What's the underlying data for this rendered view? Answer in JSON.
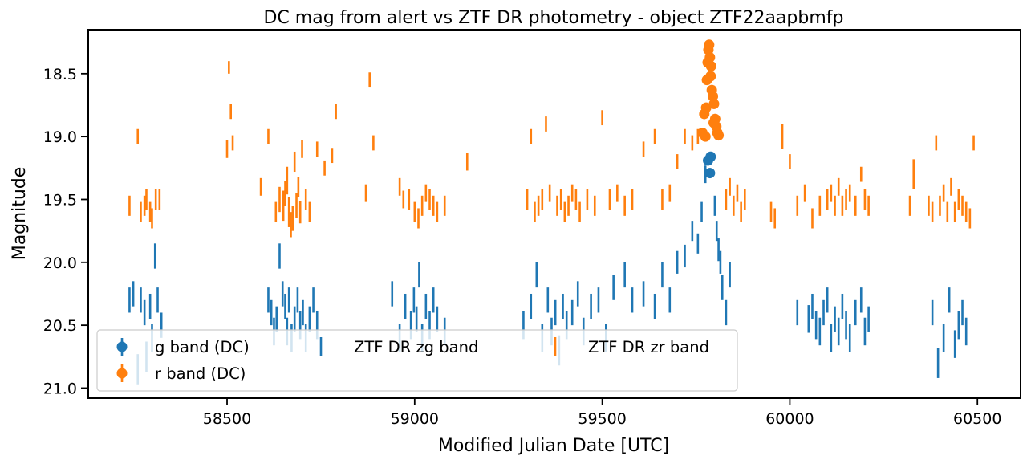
{
  "chart_data": {
    "type": "scatter",
    "title": "DC mag from alert vs ZTF DR photometry - object ZTF22aapbmfp",
    "xlabel": "Modified Julian Date [UTC]",
    "ylabel": "Magnitude",
    "xlim": [
      58130,
      60615
    ],
    "ylim": [
      21.08,
      18.15
    ],
    "y_inverted": true,
    "grid": false,
    "legend_position": "lower-left",
    "legend_columns": 3,
    "x_ticks": [
      58500,
      59000,
      59500,
      60000,
      60500
    ],
    "x_tick_labels": [
      "58500",
      "59000",
      "59500",
      "60000",
      "60500"
    ],
    "y_ticks": [
      18.5,
      19.0,
      19.5,
      20.0,
      20.5,
      21.0
    ],
    "y_tick_labels": [
      "18.5",
      "19.0",
      "19.5",
      "20.0",
      "20.5",
      "21.0"
    ],
    "colors": {
      "g": "#1f77b4",
      "r": "#ff7f0e"
    },
    "series": [
      {
        "name": "g band (DC)",
        "marker": "circle",
        "color": "#1f77b4",
        "x": [
          59782,
          59789,
          59787
        ],
        "y": [
          19.19,
          19.16,
          19.29
        ],
        "err": [
          0.04,
          0.04,
          0.04
        ]
      },
      {
        "name": "r band (DC)",
        "marker": "circle",
        "color": "#ff7f0e",
        "x": [
          59767,
          59772,
          59777,
          59779,
          59781,
          59783,
          59785,
          59787,
          59789,
          59792,
          59795,
          59798,
          59801,
          59804,
          59807,
          59810,
          59775,
          59790,
          59797
        ],
        "y": [
          18.97,
          18.82,
          18.77,
          18.55,
          18.41,
          18.31,
          18.27,
          18.37,
          18.52,
          18.63,
          18.68,
          18.74,
          18.86,
          18.92,
          18.97,
          18.99,
          19.0,
          18.44,
          18.89
        ],
        "err": [
          0.04,
          0.04,
          0.04,
          0.04,
          0.04,
          0.04,
          0.04,
          0.04,
          0.04,
          0.04,
          0.04,
          0.04,
          0.04,
          0.04,
          0.04,
          0.04,
          0.04,
          0.04,
          0.04
        ]
      },
      {
        "name": "ZTF DR zg band",
        "marker": "errorbar",
        "color": "#1f77b4",
        "x": [
          58240,
          58250,
          58262,
          58270,
          58280,
          58285,
          58295,
          58300,
          58308,
          58315,
          58325,
          58610,
          58618,
          58625,
          58632,
          58640,
          58648,
          58655,
          58660,
          58665,
          58672,
          58680,
          58688,
          58695,
          58702,
          58710,
          58720,
          58730,
          58740,
          58940,
          58960,
          58975,
          58990,
          58998,
          59005,
          59012,
          59020,
          59030,
          59040,
          59050,
          59060,
          59080,
          59290,
          59310,
          59325,
          59340,
          59355,
          59365,
          59375,
          59385,
          59395,
          59405,
          59420,
          59435,
          59450,
          59470,
          59490,
          59510,
          59530,
          59560,
          59580,
          59610,
          59640,
          59660,
          59680,
          59700,
          59720,
          59740,
          59755,
          59765,
          59775,
          59800,
          59805,
          59810,
          59815,
          59820,
          59830,
          59840,
          60020,
          60050,
          60060,
          60070,
          60080,
          60090,
          60100,
          60110,
          60120,
          60130,
          60140,
          60150,
          60160,
          60175,
          60190,
          60200,
          60210,
          60380,
          60395,
          60410,
          60425,
          60440,
          60450,
          60460,
          60470
        ],
        "y": [
          20.3,
          20.25,
          20.85,
          20.3,
          20.4,
          20.75,
          20.35,
          20.6,
          19.95,
          20.3,
          20.5,
          20.3,
          20.4,
          20.55,
          20.45,
          19.95,
          20.25,
          20.35,
          20.55,
          20.3,
          20.6,
          20.45,
          20.3,
          20.5,
          20.4,
          20.6,
          20.45,
          20.3,
          20.5,
          20.25,
          20.6,
          20.35,
          20.5,
          20.3,
          20.45,
          20.1,
          20.6,
          20.35,
          20.5,
          20.3,
          20.45,
          20.55,
          20.5,
          20.35,
          20.1,
          20.6,
          20.3,
          20.55,
          20.4,
          20.7,
          20.35,
          20.5,
          20.4,
          20.25,
          20.55,
          20.35,
          20.3,
          20.6,
          20.2,
          20.1,
          20.3,
          20.25,
          20.35,
          20.1,
          20.3,
          20.0,
          19.95,
          19.75,
          19.85,
          19.6,
          19.3,
          19.55,
          19.75,
          19.9,
          20.0,
          20.2,
          20.4,
          20.1,
          20.4,
          20.45,
          20.35,
          20.5,
          20.55,
          20.4,
          20.3,
          20.6,
          20.45,
          20.55,
          20.35,
          20.5,
          20.6,
          20.4,
          20.3,
          20.55,
          20.45,
          20.4,
          20.8,
          20.6,
          20.3,
          20.65,
          20.5,
          20.4,
          20.55
        ],
        "err": [
          0.1,
          0.1,
          0.12,
          0.1,
          0.1,
          0.12,
          0.1,
          0.11,
          0.1,
          0.1,
          0.1,
          0.1,
          0.1,
          0.11,
          0.1,
          0.1,
          0.1,
          0.1,
          0.11,
          0.1,
          0.11,
          0.1,
          0.1,
          0.11,
          0.1,
          0.11,
          0.1,
          0.1,
          0.11,
          0.1,
          0.11,
          0.1,
          0.11,
          0.1,
          0.1,
          0.1,
          0.11,
          0.1,
          0.11,
          0.1,
          0.1,
          0.11,
          0.11,
          0.1,
          0.1,
          0.11,
          0.1,
          0.11,
          0.1,
          0.12,
          0.1,
          0.11,
          0.1,
          0.1,
          0.11,
          0.1,
          0.1,
          0.11,
          0.1,
          0.1,
          0.1,
          0.1,
          0.1,
          0.1,
          0.1,
          0.09,
          0.09,
          0.08,
          0.08,
          0.08,
          0.07,
          0.08,
          0.08,
          0.09,
          0.09,
          0.1,
          0.1,
          0.1,
          0.1,
          0.11,
          0.1,
          0.11,
          0.11,
          0.1,
          0.1,
          0.11,
          0.1,
          0.11,
          0.1,
          0.11,
          0.11,
          0.1,
          0.1,
          0.11,
          0.1,
          0.1,
          0.12,
          0.11,
          0.1,
          0.11,
          0.11,
          0.1,
          0.11
        ]
      },
      {
        "name": "ZTF DR zr band",
        "marker": "errorbar",
        "color": "#ff7f0e",
        "x": [
          58240,
          58262,
          58270,
          58280,
          58285,
          58295,
          58300,
          58310,
          58320,
          58500,
          58505,
          58510,
          58515,
          58590,
          58610,
          58630,
          58640,
          58650,
          58655,
          58660,
          58665,
          58670,
          58675,
          58680,
          58685,
          58690,
          58695,
          58700,
          58710,
          58720,
          58740,
          58760,
          58780,
          58790,
          58870,
          58880,
          58890,
          58960,
          58970,
          58985,
          59000,
          59010,
          59020,
          59030,
          59040,
          59050,
          59060,
          59080,
          59140,
          59300,
          59310,
          59320,
          59330,
          59340,
          59350,
          59360,
          59380,
          59390,
          59400,
          59410,
          59420,
          59430,
          59440,
          59460,
          59480,
          59500,
          59520,
          59540,
          59560,
          59580,
          59610,
          59640,
          59660,
          59680,
          59700,
          59720,
          59740,
          59755,
          59830,
          59840,
          59850,
          59860,
          59870,
          59880,
          59950,
          59960,
          59980,
          60000,
          60020,
          60040,
          60060,
          60080,
          60100,
          60110,
          60120,
          60130,
          60140,
          60150,
          60160,
          60175,
          60190,
          60200,
          60210,
          60320,
          60330,
          60370,
          60380,
          60390,
          60400,
          60410,
          60420,
          60430,
          60440,
          60450,
          60460,
          60470,
          60480,
          60490
        ],
        "y": [
          19.55,
          19.0,
          19.6,
          19.55,
          19.5,
          19.6,
          19.65,
          19.5,
          19.5,
          19.1,
          18.45,
          18.8,
          19.05,
          19.4,
          19.0,
          19.6,
          19.5,
          19.55,
          19.45,
          19.35,
          19.6,
          19.7,
          19.65,
          19.2,
          19.55,
          19.4,
          19.6,
          19.1,
          19.5,
          19.6,
          19.1,
          19.25,
          19.15,
          18.8,
          19.45,
          18.55,
          19.05,
          19.4,
          19.5,
          19.5,
          19.6,
          19.65,
          19.55,
          19.45,
          19.5,
          19.55,
          19.6,
          19.55,
          19.2,
          19.5,
          19.0,
          19.6,
          19.55,
          19.5,
          18.9,
          19.45,
          19.55,
          19.5,
          19.6,
          19.55,
          19.45,
          19.5,
          19.6,
          19.5,
          19.55,
          18.85,
          19.5,
          19.45,
          19.55,
          19.5,
          19.1,
          19.0,
          19.5,
          19.45,
          19.2,
          19.0,
          19.05,
          19.0,
          19.5,
          19.4,
          19.55,
          19.45,
          19.6,
          19.5,
          19.6,
          19.65,
          19.0,
          19.2,
          19.55,
          19.45,
          19.65,
          19.55,
          19.5,
          19.45,
          19.55,
          19.4,
          19.55,
          19.5,
          19.45,
          19.55,
          19.3,
          19.5,
          19.55,
          19.55,
          19.3,
          19.55,
          19.6,
          19.05,
          19.55,
          19.45,
          19.6,
          19.4,
          19.6,
          19.5,
          19.55,
          19.6,
          19.65,
          19.05
        ],
        "err": [
          0.08,
          0.06,
          0.08,
          0.08,
          0.08,
          0.08,
          0.08,
          0.08,
          0.08,
          0.07,
          0.05,
          0.06,
          0.06,
          0.07,
          0.06,
          0.08,
          0.1,
          0.12,
          0.1,
          0.11,
          0.12,
          0.1,
          0.1,
          0.08,
          0.1,
          0.08,
          0.09,
          0.07,
          0.08,
          0.08,
          0.06,
          0.06,
          0.06,
          0.06,
          0.07,
          0.06,
          0.06,
          0.07,
          0.07,
          0.08,
          0.08,
          0.08,
          0.08,
          0.07,
          0.08,
          0.08,
          0.08,
          0.08,
          0.07,
          0.08,
          0.06,
          0.08,
          0.08,
          0.08,
          0.06,
          0.07,
          0.08,
          0.08,
          0.08,
          0.08,
          0.07,
          0.08,
          0.08,
          0.08,
          0.08,
          0.06,
          0.08,
          0.07,
          0.08,
          0.08,
          0.06,
          0.06,
          0.08,
          0.07,
          0.06,
          0.06,
          0.06,
          0.06,
          0.08,
          0.07,
          0.08,
          0.07,
          0.08,
          0.08,
          0.08,
          0.08,
          0.1,
          0.06,
          0.08,
          0.07,
          0.08,
          0.08,
          0.08,
          0.07,
          0.08,
          0.07,
          0.08,
          0.08,
          0.07,
          0.08,
          0.06,
          0.08,
          0.08,
          0.08,
          0.12,
          0.08,
          0.08,
          0.06,
          0.08,
          0.07,
          0.08,
          0.07,
          0.08,
          0.08,
          0.08,
          0.08,
          0.08,
          0.06
        ]
      }
    ]
  }
}
